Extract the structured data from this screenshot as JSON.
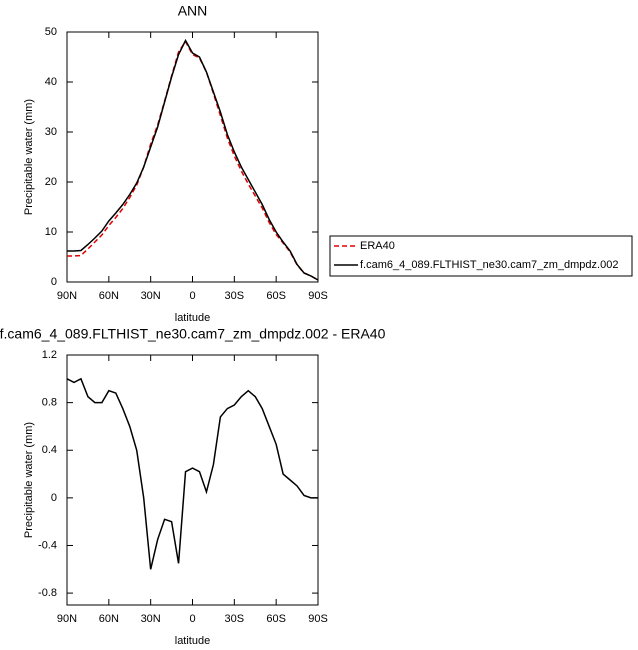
{
  "chart_data": [
    {
      "type": "line",
      "title": "ANN",
      "xlabel": "latitude",
      "ylabel": "Precipitable water (mm)",
      "x": [
        90,
        85,
        80,
        75,
        70,
        65,
        60,
        55,
        50,
        45,
        40,
        35,
        30,
        25,
        20,
        15,
        10,
        5,
        0,
        -5,
        -10,
        -15,
        -20,
        -25,
        -30,
        -35,
        -40,
        -45,
        -50,
        -55,
        -60,
        -65,
        -70,
        -75,
        -80,
        -85,
        -90
      ],
      "series": [
        {
          "name": "ERA40",
          "color": "#e00000",
          "dash": true,
          "values": [
            5.2,
            5.2,
            5.3,
            6.6,
            8.0,
            9.4,
            11.3,
            12.9,
            14.7,
            16.9,
            19.4,
            23.0,
            27.6,
            31.4,
            36.2,
            41.2,
            46.0,
            48.1,
            45.5,
            44.8,
            42.0,
            37.7,
            33.3,
            28.8,
            25.2,
            22.2,
            19.6,
            17.2,
            14.8,
            11.9,
            9.5,
            7.8,
            6.0,
            3.4,
            1.8,
            1.2,
            0.4
          ]
        },
        {
          "name": "f.cam6_4_089.FLTHIST_ne30.cam7_zm_dmpdz.002",
          "color": "#000000",
          "dash": false,
          "values": [
            6.2,
            6.2,
            6.3,
            7.5,
            8.8,
            10.2,
            12.2,
            13.8,
            15.5,
            17.5,
            19.8,
            23.0,
            27.0,
            31.0,
            36.0,
            41.0,
            45.5,
            48.3,
            45.8,
            45.0,
            42.0,
            38.0,
            34.0,
            29.5,
            26.0,
            23.0,
            20.5,
            18.0,
            15.5,
            12.5,
            10.0,
            8.0,
            6.2,
            3.5,
            1.8,
            1.2,
            0.4
          ]
        }
      ],
      "xlim": [
        90,
        -90
      ],
      "xticks": [
        {
          "value": 90,
          "label": "90N"
        },
        {
          "value": 60,
          "label": "60N"
        },
        {
          "value": 30,
          "label": "30N"
        },
        0,
        {
          "value": -30,
          "label": "30S"
        },
        {
          "value": -60,
          "label": "60S"
        },
        {
          "value": -90,
          "label": "90S"
        }
      ],
      "ylim": [
        0,
        50
      ],
      "yticks": [
        0,
        10,
        20,
        30,
        40,
        50
      ],
      "legend": "right"
    },
    {
      "type": "line",
      "title": "f.cam6_4_089.FLTHIST_ne30.cam7_zm_dmpdz.002 - ERA40",
      "xlabel": "latitude",
      "ylabel": "Precipitable water (mm)",
      "x": [
        90,
        85,
        80,
        75,
        70,
        65,
        60,
        55,
        50,
        45,
        40,
        35,
        30,
        25,
        20,
        15,
        10,
        5,
        0,
        -5,
        -10,
        -15,
        -20,
        -25,
        -30,
        -35,
        -40,
        -45,
        -50,
        -55,
        -60,
        -65,
        -70,
        -75,
        -80,
        -85,
        -90
      ],
      "series": [
        {
          "color": "#000000",
          "dash": false,
          "values": [
            1.0,
            0.97,
            1.0,
            0.85,
            0.8,
            0.8,
            0.9,
            0.88,
            0.75,
            0.6,
            0.4,
            0.0,
            -0.6,
            -0.35,
            -0.18,
            -0.2,
            -0.55,
            0.22,
            0.25,
            0.22,
            0.05,
            0.28,
            0.68,
            0.75,
            0.78,
            0.85,
            0.9,
            0.85,
            0.75,
            0.6,
            0.45,
            0.2,
            0.15,
            0.1,
            0.02,
            0.0,
            0.0
          ]
        }
      ],
      "xlim": [
        90,
        -90
      ],
      "xticks": [
        {
          "value": 90,
          "label": "90N"
        },
        {
          "value": 60,
          "label": "60N"
        },
        {
          "value": 30,
          "label": "30N"
        },
        0,
        {
          "value": -30,
          "label": "30S"
        },
        {
          "value": -60,
          "label": "60S"
        },
        {
          "value": -90,
          "label": "90S"
        }
      ],
      "ylim": [
        -0.9,
        1.2
      ],
      "yticks": [
        1.2,
        0.8,
        0.4,
        0.0,
        -0.4,
        -0.8
      ]
    }
  ]
}
